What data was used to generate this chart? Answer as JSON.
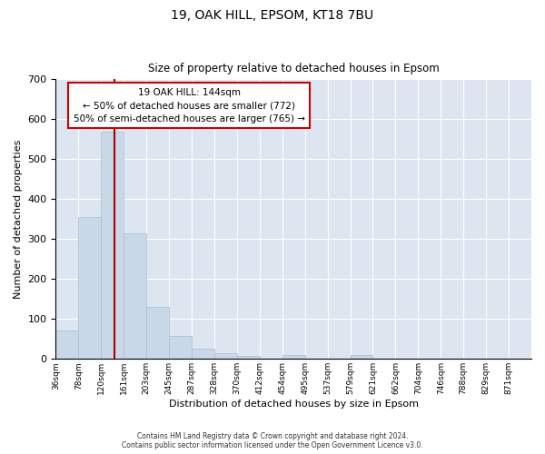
{
  "title_line1": "19, OAK HILL, EPSOM, KT18 7BU",
  "title_line2": "Size of property relative to detached houses in Epsom",
  "xlabel": "Distribution of detached houses by size in Epsom",
  "ylabel": "Number of detached properties",
  "bar_color": "#c8d8e8",
  "bar_edge_color": "#a8bdd0",
  "background_color": "#dde6f0",
  "grid_color": "#ffffff",
  "annotation_text": "19 OAK HILL: 144sqm\n← 50% of detached houses are smaller (772)\n50% of semi-detached houses are larger (765) →",
  "annotation_box_color": "#ffffff",
  "annotation_border_color": "#cc0000",
  "vline_color": "#aa0000",
  "categories": [
    "36sqm",
    "78sqm",
    "120sqm",
    "161sqm",
    "203sqm",
    "245sqm",
    "287sqm",
    "328sqm",
    "370sqm",
    "412sqm",
    "454sqm",
    "495sqm",
    "537sqm",
    "579sqm",
    "621sqm",
    "662sqm",
    "704sqm",
    "746sqm",
    "788sqm",
    "829sqm",
    "871sqm"
  ],
  "values": [
    70,
    355,
    570,
    315,
    130,
    57,
    25,
    14,
    7,
    0,
    10,
    0,
    0,
    10,
    0,
    0,
    0,
    0,
    0,
    0,
    0
  ],
  "ylim": [
    0,
    700
  ],
  "yticks": [
    0,
    100,
    200,
    300,
    400,
    500,
    600,
    700
  ],
  "footer_line1": "Contains HM Land Registry data © Crown copyright and database right 2024.",
  "footer_line2": "Contains public sector information licensed under the Open Government Licence v3.0."
}
